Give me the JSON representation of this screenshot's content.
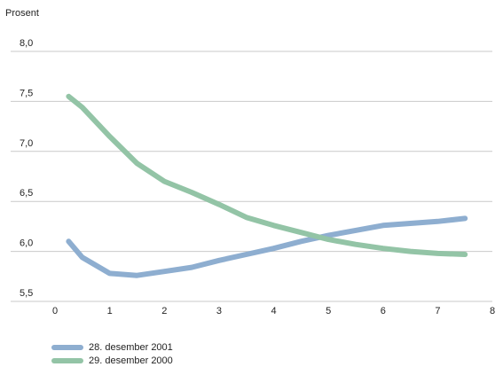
{
  "chart_data": {
    "type": "line",
    "ylabel": "Prosent",
    "xlim": [
      0,
      8
    ],
    "ylim": [
      5.5,
      8.0
    ],
    "x_ticks": [
      "0",
      "1",
      "2",
      "3",
      "4",
      "5",
      "6",
      "7",
      "8"
    ],
    "y_ticks": [
      "5,5",
      "6,0",
      "6,5",
      "7,0",
      "7,5",
      "8,0"
    ],
    "grid": true,
    "legend_position": "bottom-left",
    "series": [
      {
        "name": "28. desember 2001",
        "color": "#8eaed0",
        "points": [
          [
            0.25,
            6.1
          ],
          [
            0.5,
            5.94
          ],
          [
            1.0,
            5.78
          ],
          [
            1.5,
            5.76
          ],
          [
            2.0,
            5.8
          ],
          [
            2.5,
            5.84
          ],
          [
            3.0,
            5.91
          ],
          [
            3.5,
            5.97
          ],
          [
            4.0,
            6.03
          ],
          [
            4.5,
            6.1
          ],
          [
            5.0,
            6.16
          ],
          [
            5.5,
            6.21
          ],
          [
            6.0,
            6.26
          ],
          [
            6.5,
            6.28
          ],
          [
            7.0,
            6.3
          ],
          [
            7.5,
            6.33
          ]
        ]
      },
      {
        "name": "29. desember 2000",
        "color": "#93c4a6",
        "points": [
          [
            0.25,
            7.55
          ],
          [
            0.5,
            7.44
          ],
          [
            1.0,
            7.15
          ],
          [
            1.5,
            6.88
          ],
          [
            2.0,
            6.7
          ],
          [
            2.5,
            6.59
          ],
          [
            3.0,
            6.47
          ],
          [
            3.5,
            6.34
          ],
          [
            4.0,
            6.26
          ],
          [
            4.5,
            6.19
          ],
          [
            5.0,
            6.12
          ],
          [
            5.5,
            6.07
          ],
          [
            6.0,
            6.03
          ],
          [
            6.5,
            6.0
          ],
          [
            7.0,
            5.98
          ],
          [
            7.5,
            5.97
          ]
        ]
      }
    ]
  }
}
